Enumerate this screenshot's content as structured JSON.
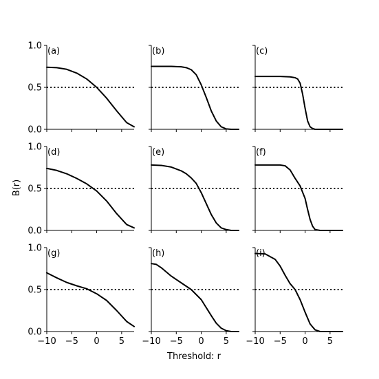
{
  "chart_data": {
    "type": "line",
    "layout": "3x3 grid, shared axes",
    "xlabel": "Threshold: r",
    "ylabel": "B(r)",
    "xlim": [
      -10,
      7.5
    ],
    "ylim": [
      0,
      1.0
    ],
    "xticks": [
      -10,
      -5,
      0,
      5
    ],
    "xtick_labels": [
      "−10",
      "−5",
      "0",
      "5"
    ],
    "yticks": [
      0.0,
      0.5,
      1.0
    ],
    "ytick_labels": [
      "0.0",
      "0.5",
      "1.0"
    ],
    "reference_line": {
      "y": 0.5,
      "style": "dotted"
    },
    "line_color": "#000000",
    "grid": false,
    "legend": "none",
    "panels": [
      {
        "label": "(a)",
        "x": [
          -10,
          -8,
          -6,
          -4,
          -2,
          0,
          2,
          4,
          6,
          7.5
        ],
        "y": [
          0.74,
          0.735,
          0.715,
          0.67,
          0.6,
          0.5,
          0.37,
          0.22,
          0.08,
          0.03
        ]
      },
      {
        "label": "(b)",
        "x": [
          -10,
          -6,
          -4,
          -3,
          -2,
          -1,
          0,
          1,
          2,
          3,
          4,
          5,
          6,
          7.5
        ],
        "y": [
          0.75,
          0.75,
          0.745,
          0.735,
          0.71,
          0.65,
          0.53,
          0.38,
          0.22,
          0.1,
          0.03,
          0.005,
          0,
          0
        ]
      },
      {
        "label": "(c)",
        "x": [
          -10,
          -5,
          -3,
          -2,
          -1.5,
          -1,
          -0.5,
          0,
          0.5,
          1,
          1.5,
          2,
          3,
          7.5
        ],
        "y": [
          0.63,
          0.63,
          0.625,
          0.615,
          0.6,
          0.55,
          0.42,
          0.25,
          0.1,
          0.03,
          0.01,
          0,
          0,
          0
        ]
      },
      {
        "label": "(d)",
        "x": [
          -10,
          -8,
          -6,
          -4,
          -2,
          0,
          2,
          4,
          6,
          7.5
        ],
        "y": [
          0.74,
          0.715,
          0.675,
          0.62,
          0.555,
          0.47,
          0.35,
          0.2,
          0.07,
          0.03
        ]
      },
      {
        "label": "(e)",
        "x": [
          -10,
          -8,
          -6,
          -4,
          -3,
          -2,
          -1,
          0,
          1,
          2,
          3,
          4,
          5,
          6,
          7.5
        ],
        "y": [
          0.78,
          0.775,
          0.755,
          0.71,
          0.675,
          0.625,
          0.56,
          0.45,
          0.32,
          0.19,
          0.09,
          0.03,
          0.01,
          0,
          0
        ]
      },
      {
        "label": "(f)",
        "x": [
          -10,
          -5,
          -4,
          -3,
          -2,
          -1,
          0,
          0.5,
          1,
          1.5,
          2,
          3,
          7.5
        ],
        "y": [
          0.78,
          0.78,
          0.77,
          0.72,
          0.62,
          0.53,
          0.38,
          0.25,
          0.13,
          0.05,
          0.01,
          0,
          0
        ]
      },
      {
        "label": "(g)",
        "x": [
          -10,
          -8,
          -6,
          -4,
          -2,
          0,
          2,
          4,
          6,
          7.5
        ],
        "y": [
          0.7,
          0.64,
          0.585,
          0.545,
          0.51,
          0.45,
          0.37,
          0.25,
          0.12,
          0.06
        ]
      },
      {
        "label": "(h)",
        "x": [
          -10,
          -9,
          -8,
          -6,
          -4,
          -2,
          0,
          2,
          3,
          4,
          5,
          6,
          7.5
        ],
        "y": [
          0.81,
          0.8,
          0.76,
          0.66,
          0.58,
          0.5,
          0.38,
          0.19,
          0.1,
          0.04,
          0.01,
          0,
          0
        ]
      },
      {
        "label": "(i)",
        "x": [
          -10,
          -8,
          -6,
          -5,
          -4,
          -3,
          -2,
          -1,
          0,
          1,
          2,
          3,
          7.5
        ],
        "y": [
          0.93,
          0.925,
          0.86,
          0.78,
          0.67,
          0.57,
          0.5,
          0.38,
          0.23,
          0.09,
          0.02,
          0,
          0
        ]
      }
    ]
  }
}
